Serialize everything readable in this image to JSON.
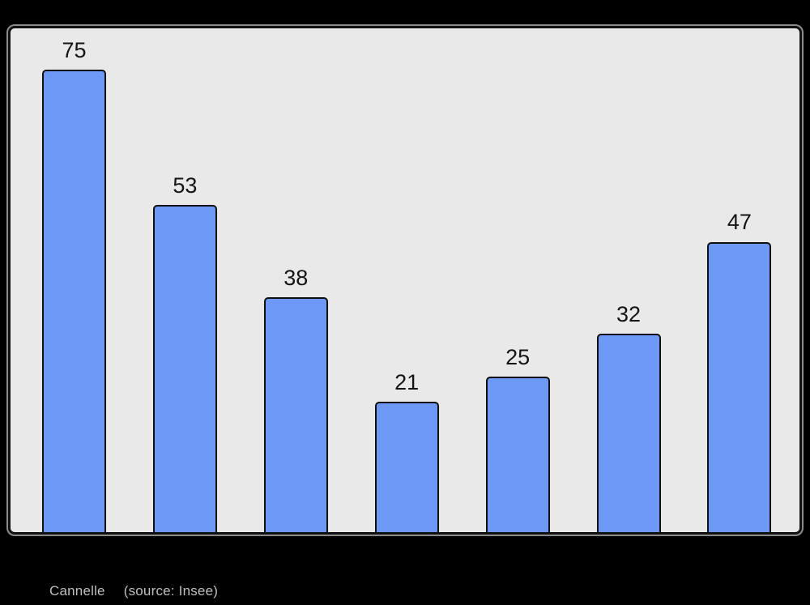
{
  "page": {
    "background_color": "#000000"
  },
  "chart_data": {
    "type": "bar",
    "values": [
      75,
      53,
      38,
      21,
      25,
      32,
      47
    ],
    "data_labels": [
      75,
      53,
      38,
      21,
      25,
      32,
      47
    ],
    "title": "",
    "xlabel": "",
    "ylabel": "",
    "ylim": [
      0,
      82
    ],
    "grid": false,
    "legend": false,
    "axis_tick_labels": "none",
    "bar_color": "#6d98f5",
    "bar_border_color": "#0f0f0f",
    "plot_background_color": "#e9e9e9",
    "frame_border_color": "#111111",
    "label_color": "#141414"
  },
  "caption": {
    "title": "Cannelle",
    "source": "(source: Insee)",
    "color": "#bfbfbf"
  }
}
